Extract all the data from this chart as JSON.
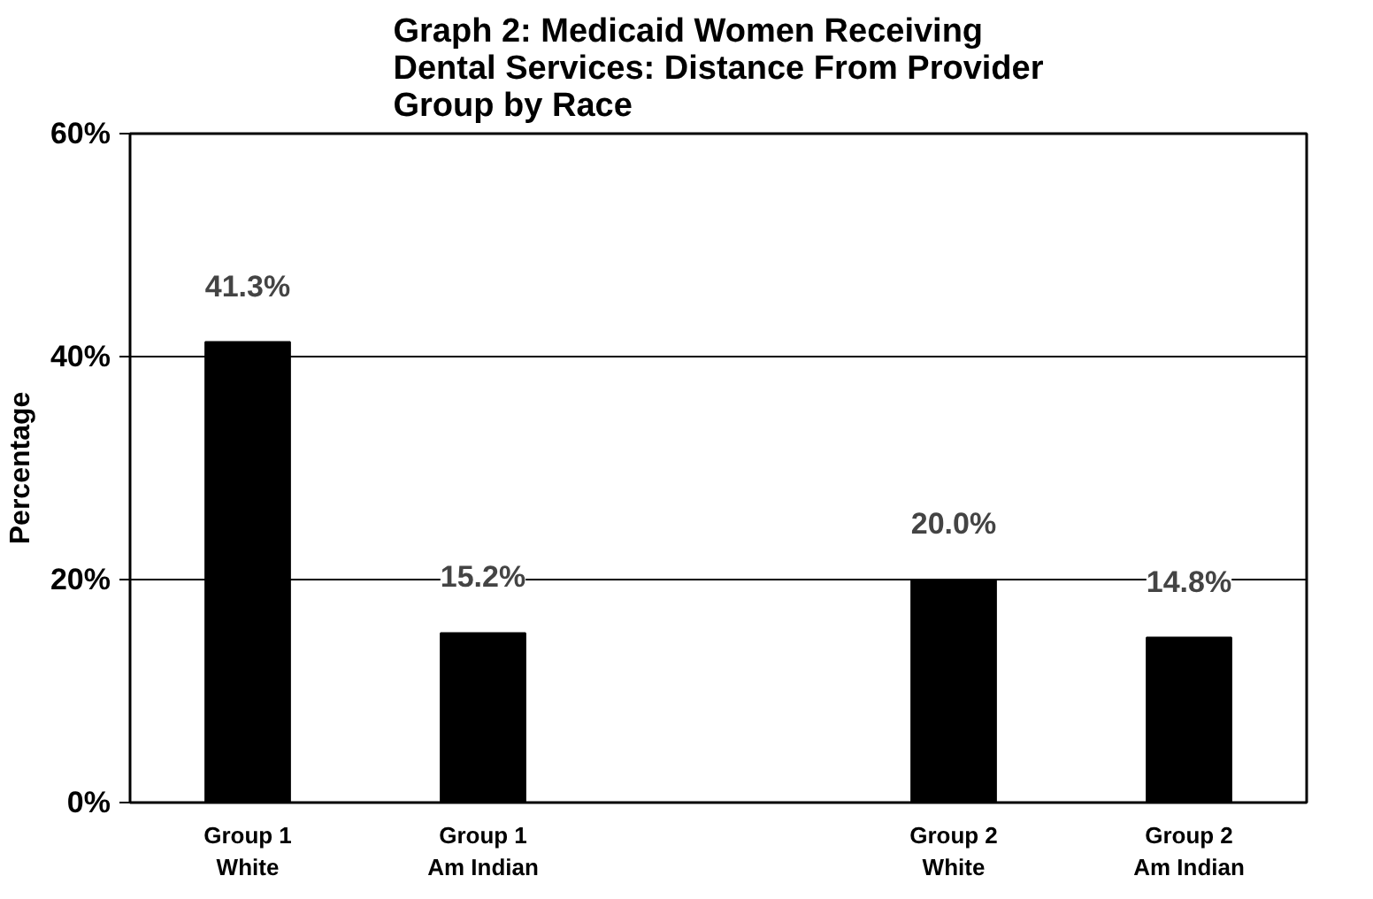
{
  "chart_data": {
    "type": "bar",
    "title": "Graph 2: Medicaid Women Receiving Dental Services: Distance From Provider Group by Race",
    "ylabel": "Percentage",
    "categories": [
      "Group 1\nWhite",
      "Group 1\nAm Indian",
      null,
      "Group 2\nWhite",
      "Group 2\nAm Indian"
    ],
    "values": [
      41.3,
      15.2,
      null,
      20.0,
      14.8
    ],
    "color": "#000000",
    "value_labels": [
      "41.3%",
      "15.2%",
      null,
      "20.0%",
      "14.8%"
    ],
    "ylim": [
      0,
      60
    ],
    "yticks": [
      {
        "value": 0,
        "label": "0%"
      },
      {
        "value": 20,
        "label": "20%"
      },
      {
        "value": 40,
        "label": "40%"
      },
      {
        "value": 60,
        "label": "60%"
      }
    ],
    "grid": "y"
  }
}
